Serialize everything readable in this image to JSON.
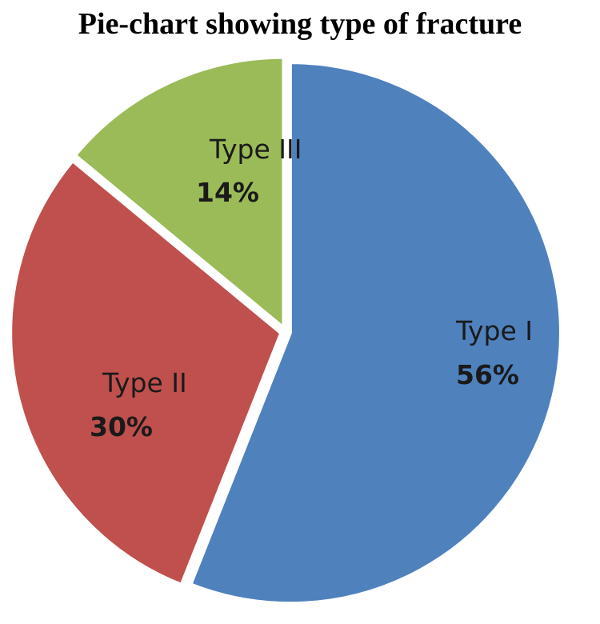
{
  "chart_data": {
    "type": "pie",
    "title": "Pie-chart showing type of fracture",
    "slices": [
      {
        "label": "Type I",
        "value": 56,
        "display": "56%",
        "color": "#4F81BD"
      },
      {
        "label": "Type II",
        "value": 30,
        "display": "30%",
        "color": "#C0504D"
      },
      {
        "label": "Type III",
        "value": 14,
        "display": "14%",
        "color": "#9BBB59"
      }
    ],
    "legend": "none",
    "start_angle": "12 o'clock",
    "direction": "clockwise"
  }
}
